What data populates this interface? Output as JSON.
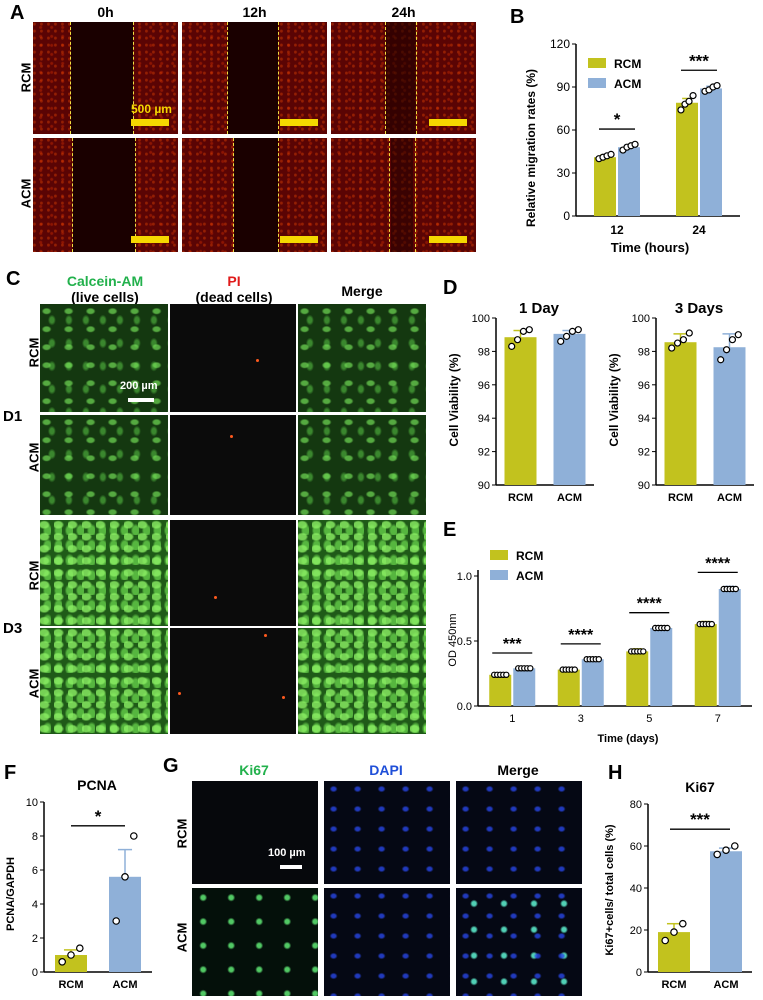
{
  "panels": {
    "A": "A",
    "B": "B",
    "C": "C",
    "D": "D",
    "E": "E",
    "F": "F",
    "G": "G",
    "H": "H"
  },
  "panelA": {
    "times": [
      "0h",
      "12h",
      "24h"
    ],
    "rows": [
      "RCM",
      "ACM"
    ],
    "scale": "500 µm",
    "colors": {
      "scalebar": "#f5d800",
      "edge": "#f0e040"
    }
  },
  "panelC": {
    "headers": [
      {
        "line1": "Calcein-AM",
        "line2": "(live cells)"
      },
      {
        "line1": "PI",
        "line2": "(dead cells)"
      },
      {
        "line1": "Merge",
        "line2": ""
      }
    ],
    "rows": [
      "RCM",
      "ACM",
      "RCM",
      "ACM"
    ],
    "groups": [
      "D1",
      "D3"
    ],
    "scale": "200 µm",
    "colors": {
      "calcein": "#22b14c",
      "pi": "#e01b1b"
    }
  },
  "panelG": {
    "headers": [
      "Ki67",
      "DAPI",
      "Merge"
    ],
    "rows": [
      "RCM",
      "ACM"
    ],
    "scale": "100 µm",
    "colors": {
      "ki67": "#22b14c",
      "dapi": "#1f4fd8"
    }
  },
  "colors": {
    "RCM": "#c2c21e",
    "ACM": "#8fb0d8"
  },
  "chart_data": [
    {
      "id": "B",
      "type": "bar",
      "title": "",
      "xlabel": "Time (hours)",
      "ylabel": "Relative migration rates (%)",
      "categories": [
        "12",
        "24"
      ],
      "ylim": [
        0,
        120
      ],
      "yticks": [
        0,
        30,
        60,
        90,
        120
      ],
      "series": [
        {
          "name": "RCM",
          "values": [
            41,
            79
          ],
          "err": [
            1.5,
            3
          ],
          "points": [
            [
              40,
              41,
              42,
              43
            ],
            [
              74,
              78,
              80,
              84
            ]
          ]
        },
        {
          "name": "ACM",
          "values": [
            48,
            89
          ],
          "err": [
            1.5,
            1.5
          ],
          "points": [
            [
              46,
              48,
              49,
              50
            ],
            [
              87,
              88,
              90,
              91
            ]
          ]
        }
      ],
      "significance": [
        "*",
        "***"
      ],
      "legend": "top-left"
    },
    {
      "id": "D1",
      "type": "bar",
      "title": "1 Day",
      "ylabel": "Cell Viability (%)",
      "categories": [
        "RCM",
        "ACM"
      ],
      "ylim": [
        90,
        100
      ],
      "yticks": [
        90,
        92,
        94,
        96,
        98,
        100
      ],
      "values": [
        98.85,
        99.05
      ],
      "err": [
        0.4,
        0.2
      ],
      "points": [
        [
          98.3,
          98.7,
          99.2,
          99.3
        ],
        [
          98.6,
          98.9,
          99.2,
          99.3
        ]
      ]
    },
    {
      "id": "D3",
      "type": "bar",
      "title": "3 Days",
      "ylabel": "Cell Viability (%)",
      "categories": [
        "RCM",
        "ACM"
      ],
      "ylim": [
        90,
        100
      ],
      "yticks": [
        90,
        92,
        94,
        96,
        98,
        100
      ],
      "values": [
        98.55,
        98.25
      ],
      "err": [
        0.5,
        0.8
      ],
      "points": [
        [
          98.2,
          98.5,
          98.7,
          99.1
        ],
        [
          97.5,
          98.1,
          98.7,
          99.0
        ]
      ]
    },
    {
      "id": "E",
      "type": "bar",
      "xlabel": "Time (days)",
      "ylabel": "OD 450nm",
      "categories": [
        "1",
        "3",
        "5",
        "7"
      ],
      "ylim": [
        0,
        1.0
      ],
      "yticks": [
        "0.0",
        "0.5",
        "1.0"
      ],
      "series": [
        {
          "name": "RCM",
          "values": [
            0.24,
            0.28,
            0.42,
            0.63
          ],
          "err": [
            0.01,
            0.01,
            0.02,
            0.02
          ]
        },
        {
          "name": "ACM",
          "values": [
            0.29,
            0.36,
            0.6,
            0.9
          ],
          "err": [
            0.01,
            0.01,
            0.01,
            0.02
          ]
        }
      ],
      "significance": [
        "***",
        "****",
        "****",
        "****"
      ],
      "legend": "top-left"
    },
    {
      "id": "F",
      "type": "bar",
      "title": "PCNA",
      "ylabel": "PCNA/GAPDH",
      "categories": [
        "RCM",
        "ACM"
      ],
      "ylim": [
        0,
        10
      ],
      "yticks": [
        0,
        2,
        4,
        6,
        8,
        10
      ],
      "values": [
        1.0,
        5.6
      ],
      "err": [
        0.3,
        1.6
      ],
      "points": [
        [
          0.6,
          1.0,
          1.4
        ],
        [
          3.0,
          5.6,
          8.0
        ]
      ],
      "significance": [
        "*"
      ]
    },
    {
      "id": "H",
      "type": "bar",
      "title": "Ki67",
      "ylabel": "Ki67+cells/ total cells (%)",
      "categories": [
        "RCM",
        "ACM"
      ],
      "ylim": [
        0,
        80
      ],
      "yticks": [
        0,
        20,
        40,
        60,
        80
      ],
      "values": [
        19,
        57.5
      ],
      "err": [
        4,
        1.5
      ],
      "points": [
        [
          15,
          19,
          23
        ],
        [
          56,
          58,
          60
        ]
      ],
      "significance": [
        "***"
      ]
    }
  ]
}
